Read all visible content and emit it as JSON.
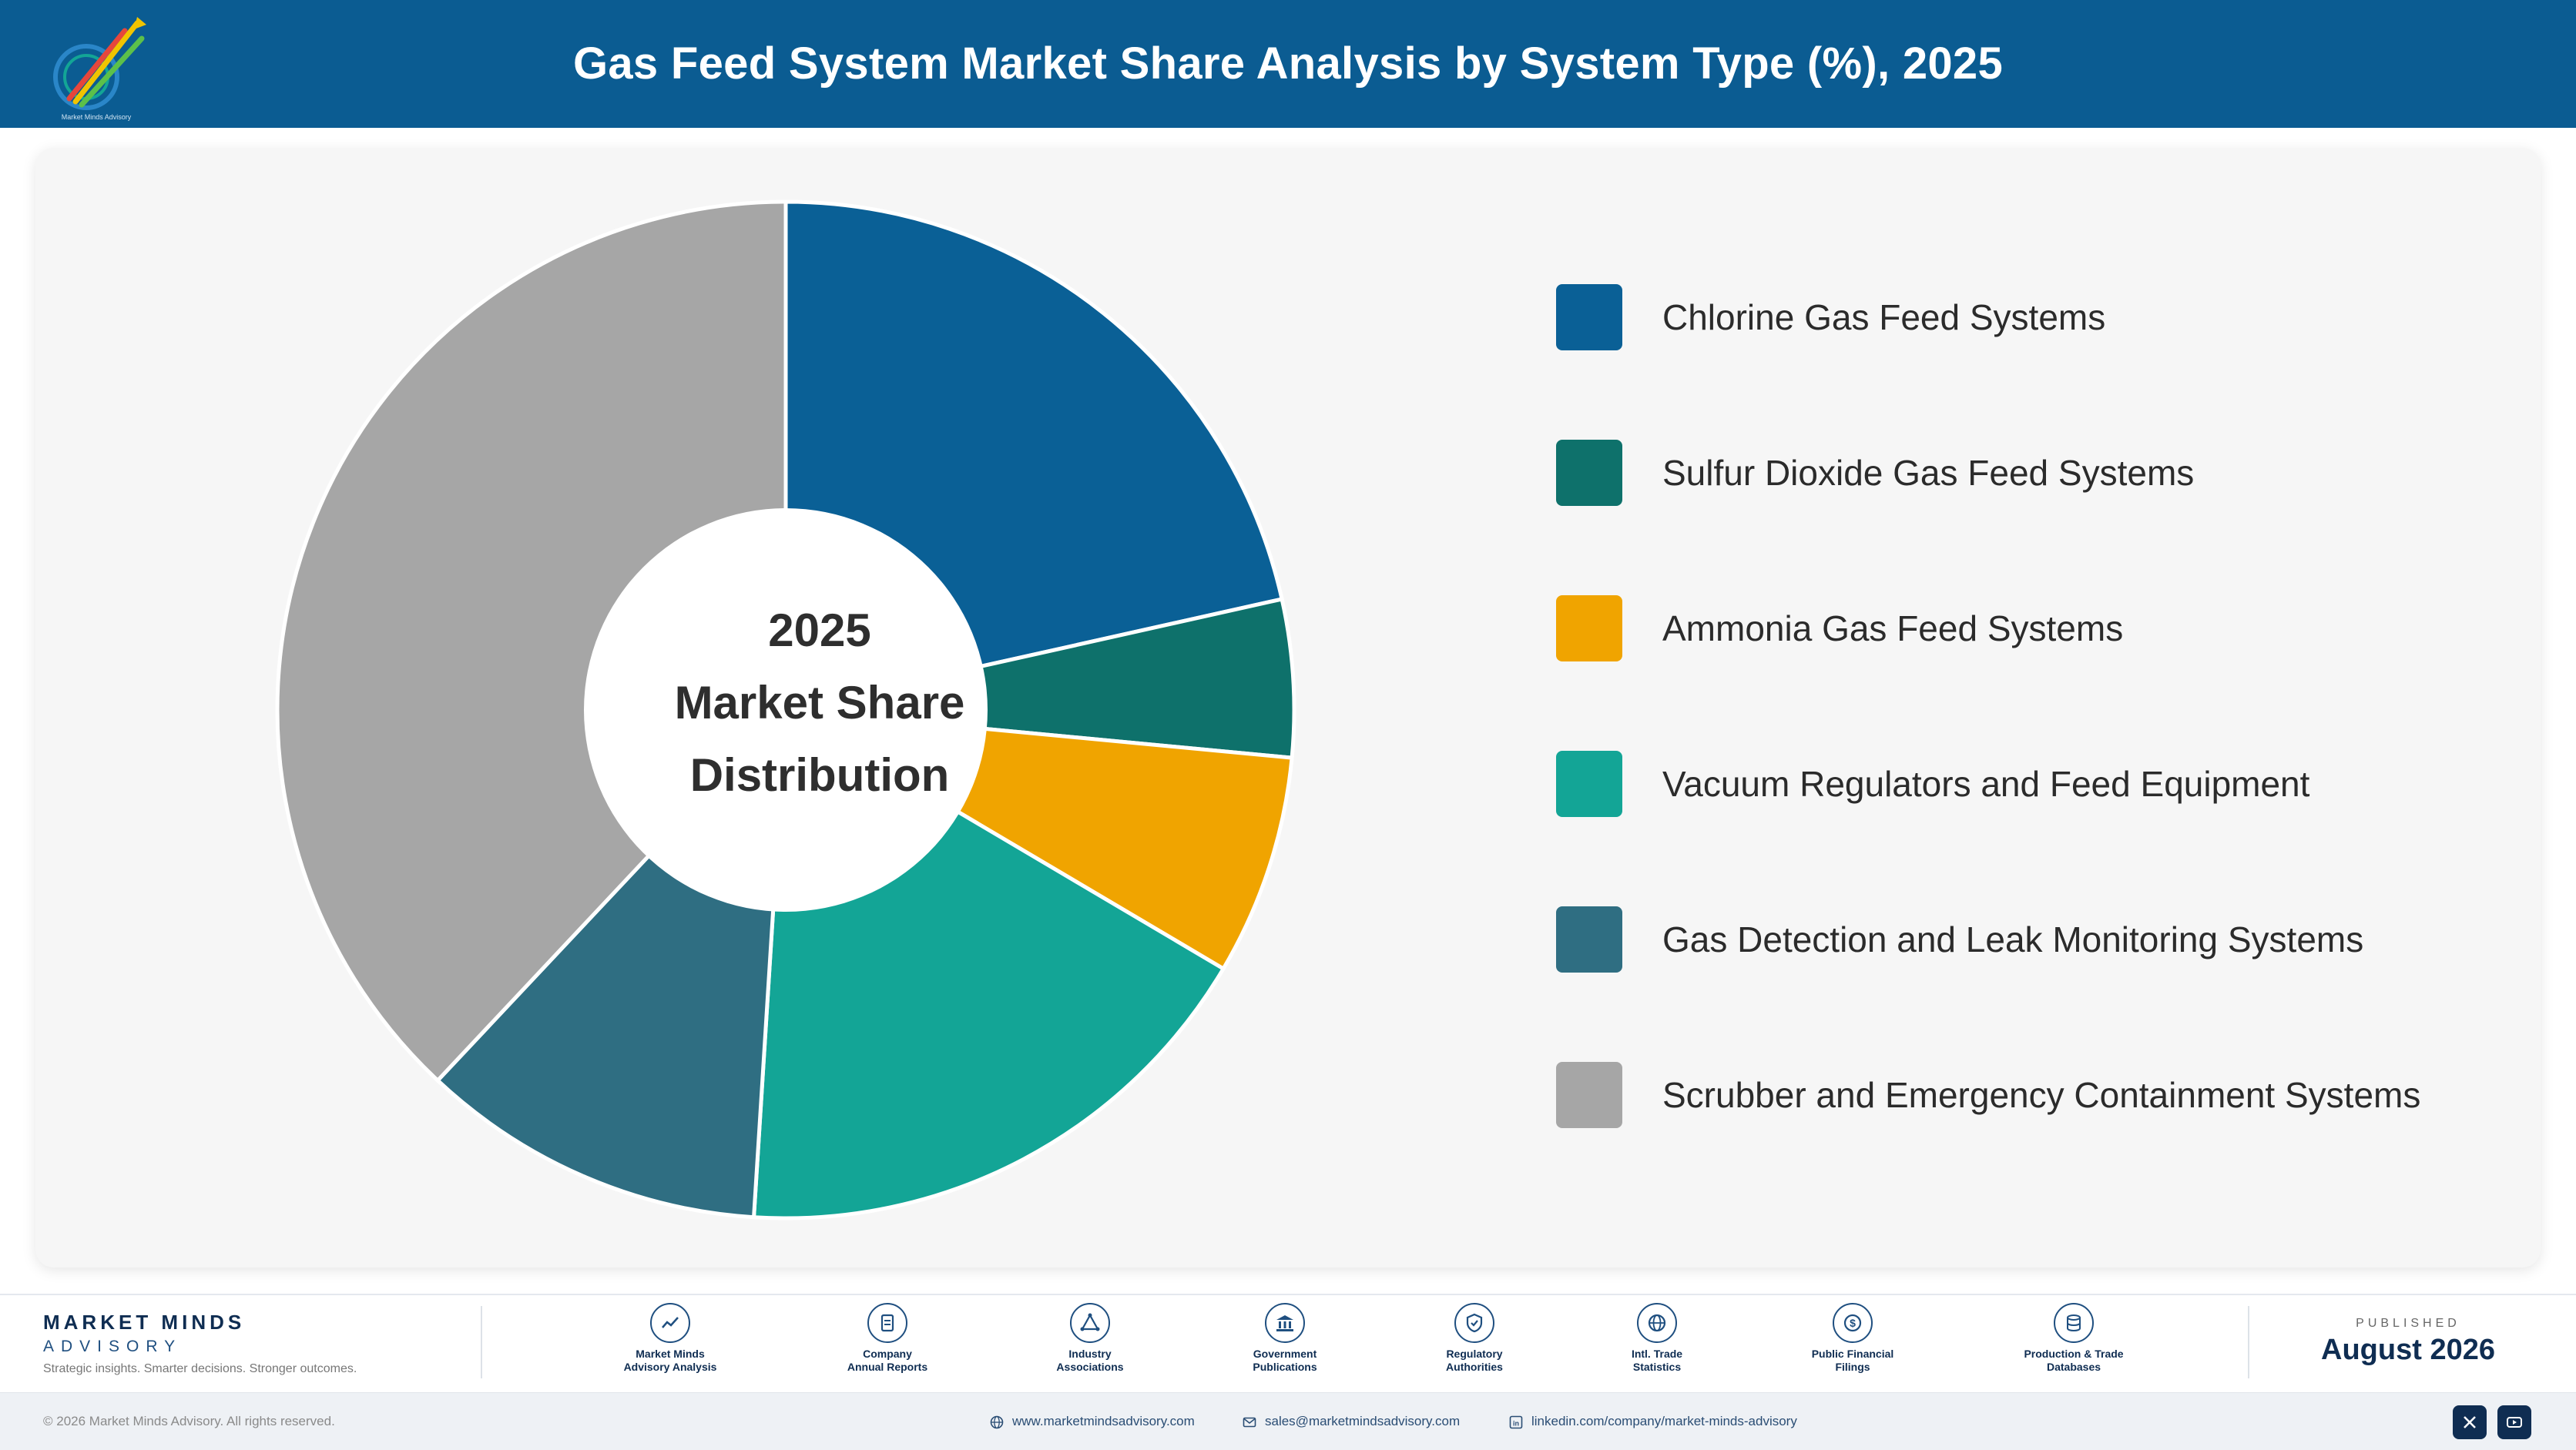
{
  "header": {
    "title": "Gas Feed System Market Share Analysis by System Type (%), 2025",
    "logo_icon": "market-minds-logo-icon"
  },
  "chart_data": {
    "type": "pie",
    "style": "donut",
    "title": "Gas Feed System Market Share Analysis by System Type (%), 2025",
    "center_label": [
      "2025",
      "Market Share",
      "Distribution"
    ],
    "categories": [
      "Chlorine Gas Feed Systems",
      "Sulfur Dioxide Gas Feed Systems",
      "Ammonia Gas Feed Systems",
      "Vacuum Regulators and Feed Equipment",
      "Gas Detection and Leak Monitoring Systems",
      "Scrubber and Emergency Containment Systems"
    ],
    "values": [
      21.5,
      5.0,
      7.0,
      17.5,
      11.0,
      38.0
    ],
    "colors": [
      "#0a6096",
      "#0e716b",
      "#f0a400",
      "#13a596",
      "#2f6e82",
      "#a6a6a6"
    ],
    "legend_position": "right"
  },
  "footer": {
    "brand_name": "MARKET MINDS",
    "brand_sub": "ADVISORY",
    "tagline": "Strategic insights. Smarter decisions. Stronger outcomes.",
    "sources": [
      {
        "line1": "Market Minds",
        "line2": "Advisory Analysis",
        "icon": "trend-chart-icon"
      },
      {
        "line1": "Company",
        "line2": "Annual Reports",
        "icon": "document-icon"
      },
      {
        "line1": "Industry",
        "line2": "Associations",
        "icon": "network-icon"
      },
      {
        "line1": "Government",
        "line2": "Publications",
        "icon": "government-building-icon"
      },
      {
        "line1": "Regulatory",
        "line2": "Authorities",
        "icon": "shield-check-icon"
      },
      {
        "line1": "Intl. Trade",
        "line2": "Statistics",
        "icon": "globe-icon"
      },
      {
        "line1": "Public Financial",
        "line2": "Filings",
        "icon": "dollar-coin-icon"
      },
      {
        "line1": "Production & Trade",
        "line2": "Databases",
        "icon": "database-icon"
      }
    ],
    "published_label": "PUBLISHED",
    "published_date": "August 2026",
    "copyright": "© 2026 Market Minds Advisory. All rights reserved.",
    "website": "www.marketmindsadvisory.com",
    "email": "sales@marketmindsadvisory.com",
    "linkedin": "linkedin.com/company/market-minds-advisory"
  }
}
